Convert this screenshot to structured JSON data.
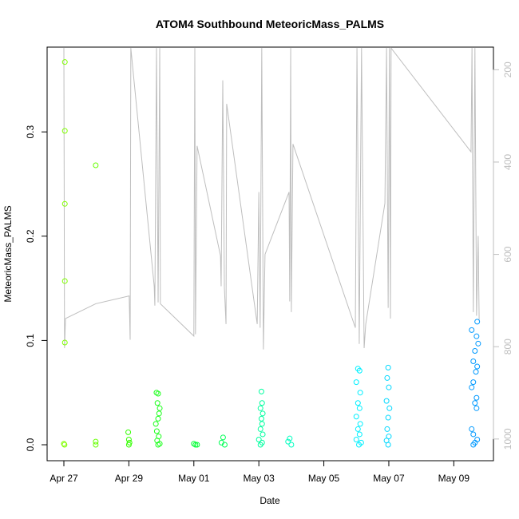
{
  "chart_data": {
    "type": "scatter",
    "title": "ATOM4 Southbound MeteoricMass_PALMS",
    "xlabel": "Date",
    "ylabel": "MeteoricMass_PALMS",
    "xlim": [
      -0.516,
      13.22
    ],
    "ylim": [
      -0.0153,
      0.3813
    ],
    "y2lim": [
      1047,
      151
    ],
    "xticks": [
      {
        "value": 0,
        "label": "Apr 27"
      },
      {
        "value": 2,
        "label": "Apr 29"
      },
      {
        "value": 4,
        "label": "May 01"
      },
      {
        "value": 6,
        "label": "May 03"
      },
      {
        "value": 8,
        "label": "May 05"
      },
      {
        "value": 10,
        "label": "May 07"
      },
      {
        "value": 12,
        "label": "May 09"
      }
    ],
    "yticks": [
      {
        "value": 0,
        "label": "0.0"
      },
      0.1,
      0.2,
      0.3
    ],
    "y2ticks": [
      200,
      400,
      600,
      800,
      1000
    ],
    "series": [
      {
        "type": "line",
        "axis": "y2",
        "color": "#bebebe",
        "x": [
          0,
          0.02,
          0.05,
          0.98,
          2.01,
          2.04,
          2.06,
          2.78,
          2.8,
          2.85,
          2.9,
          2.95,
          2.97,
          4.0,
          4.03,
          4.05,
          4.1,
          4.82,
          4.84,
          4.89,
          4.94,
          4.99,
          5.01,
          5.95,
          6.0,
          6.04,
          6.09,
          6.14,
          6.19,
          6.93,
          6.95,
          6.98,
          7.0,
          7.05,
          8.97,
          9.02,
          9.09,
          9.16,
          9.24,
          9.29,
          9.88,
          9.93,
          9.98,
          10.02,
          10.05,
          10.07,
          12.53,
          12.56,
          12.6,
          12.65,
          12.7,
          12.75,
          12.78
        ],
        "values": [
          153,
          803,
          739,
          707,
          690,
          785,
          153,
          669,
          711,
          153,
          704,
          153,
          707,
          777,
          153,
          773,
          365,
          603,
          669,
          223,
          673,
          751,
          274,
          751,
          465,
          759,
          153,
          806,
          600,
          465,
          702,
          153,
          725,
          361,
          759,
          153,
          794,
          153,
          803,
          751,
          489,
          153,
          716,
          153,
          739,
          153,
          378,
          153,
          725,
          153,
          733,
          560,
          742
        ]
      },
      {
        "color": "#80ff00",
        "x": [
          0.03,
          0.03,
          0.03,
          0.03,
          0.03,
          0.0,
          0.02
        ],
        "values": [
          0.367,
          0.301,
          0.231,
          0.157,
          0.098,
          0.001,
          0.0
        ]
      },
      {
        "color": "#66ff00",
        "x": [
          0.98,
          0.98,
          0.98
        ],
        "values": [
          0.268,
          0.003,
          0.0
        ]
      },
      {
        "color": "#33ff00",
        "x": [
          1.98,
          2.0,
          2.02,
          2.0
        ],
        "values": [
          0.012,
          0.005,
          0.002,
          0.0
        ]
      },
      {
        "color": "#1aff1a",
        "x": [
          2.85,
          2.9,
          2.88,
          2.95,
          2.93,
          2.9,
          2.83,
          2.86,
          2.92,
          2.87,
          2.95,
          2.9
        ],
        "values": [
          0.05,
          0.049,
          0.04,
          0.035,
          0.03,
          0.025,
          0.02,
          0.013,
          0.008,
          0.004,
          0.001,
          0.0
        ]
      },
      {
        "color": "#00ff33",
        "x": [
          4.0,
          4.05,
          4.1
        ],
        "values": [
          0.001,
          0.0,
          0.0
        ]
      },
      {
        "color": "#00ff55",
        "x": [
          4.9,
          4.85,
          4.95
        ],
        "values": [
          0.007,
          0.002,
          0.0
        ]
      },
      {
        "color": "#00ffa0",
        "x": [
          6.08,
          6.1,
          6.05,
          6.12,
          6.08,
          6.1,
          6.05,
          6.12,
          6.0,
          6.1,
          6.05
        ],
        "values": [
          0.051,
          0.04,
          0.035,
          0.03,
          0.025,
          0.02,
          0.015,
          0.01,
          0.005,
          0.002,
          0.0
        ]
      },
      {
        "color": "#00ffc0",
        "x": [
          6.95,
          6.9,
          7.0
        ],
        "values": [
          0.006,
          0.003,
          0.0
        ]
      },
      {
        "color": "#00f0ff",
        "x": [
          9.05,
          9.1,
          9.0,
          9.12,
          9.05,
          9.1,
          9.0,
          9.12,
          9.05,
          9.1,
          9.0,
          9.15,
          9.08
        ],
        "values": [
          0.073,
          0.071,
          0.06,
          0.05,
          0.04,
          0.035,
          0.027,
          0.02,
          0.015,
          0.01,
          0.005,
          0.002,
          0.0
        ]
      },
      {
        "color": "#00d8ff",
        "x": [
          9.98,
          9.95,
          10.0,
          9.93,
          10.02,
          9.98,
          9.95,
          10.0,
          9.93,
          9.98
        ],
        "values": [
          0.074,
          0.064,
          0.055,
          0.042,
          0.035,
          0.026,
          0.015,
          0.008,
          0.004,
          0.0
        ]
      },
      {
        "color": "#0099ff",
        "x": [
          12.72,
          12.55,
          12.7,
          12.75,
          12.65,
          12.6,
          12.72,
          12.68,
          12.6,
          12.55,
          12.7,
          12.65,
          12.7,
          12.55,
          12.6,
          12.72,
          12.65,
          12.6
        ],
        "values": [
          0.118,
          0.11,
          0.104,
          0.097,
          0.09,
          0.08,
          0.075,
          0.07,
          0.06,
          0.055,
          0.045,
          0.04,
          0.035,
          0.015,
          0.01,
          0.005,
          0.002,
          0.0
        ]
      }
    ]
  }
}
